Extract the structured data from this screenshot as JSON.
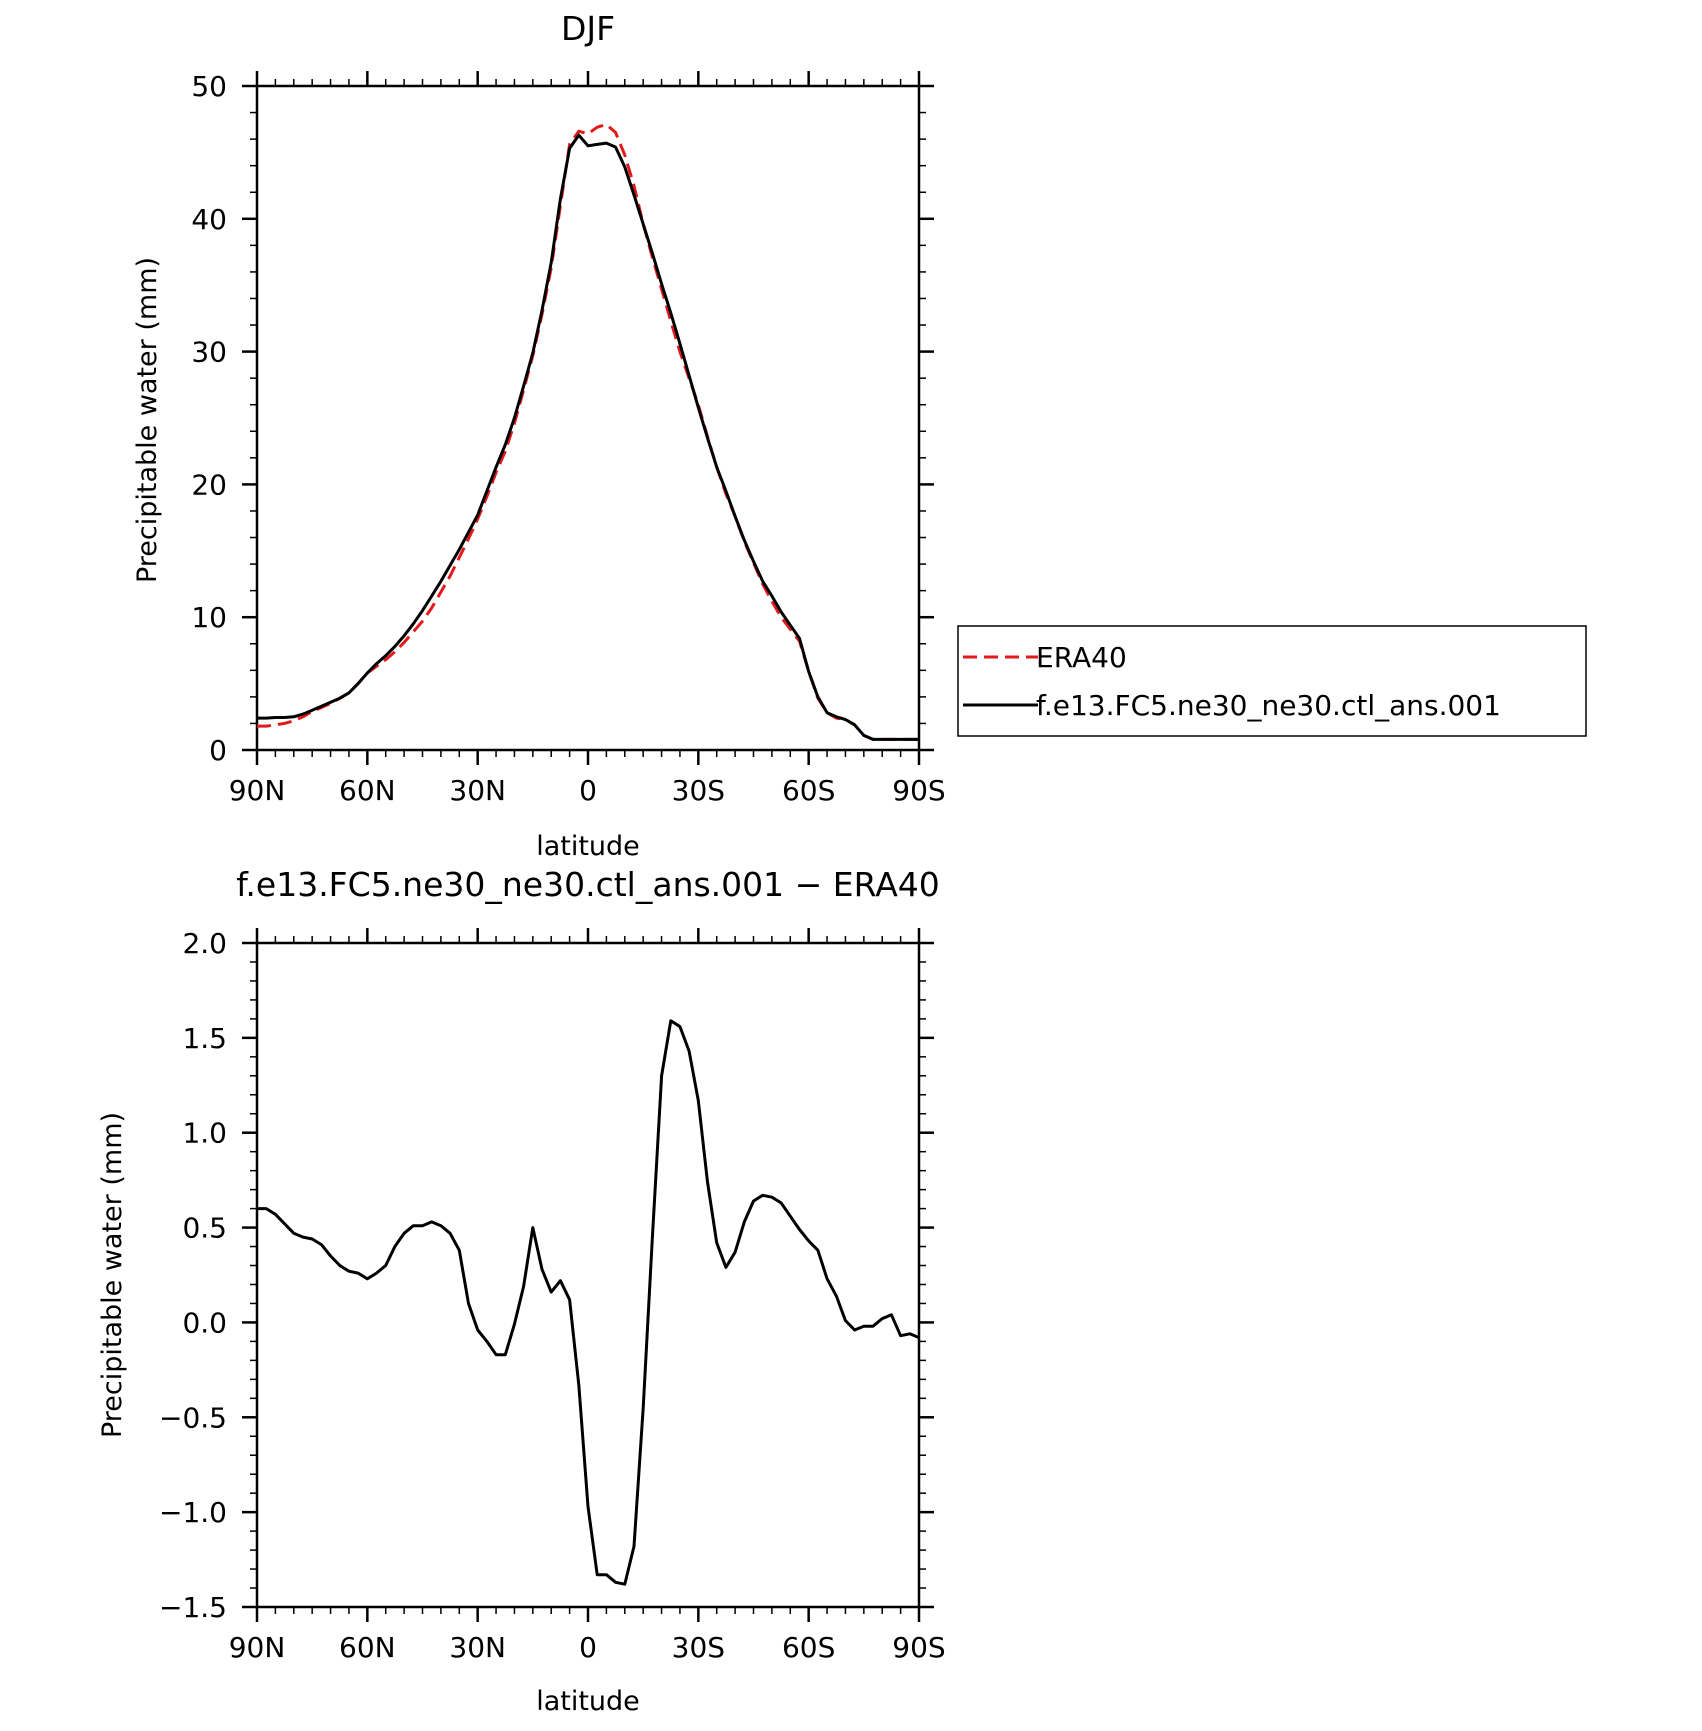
{
  "chart_data": [
    {
      "type": "line",
      "title": "DJF",
      "xlabel": "latitude",
      "ylabel": "Precipitable water (mm)",
      "xlim": [
        90,
        -90
      ],
      "ylim": [
        0,
        50
      ],
      "x_ticks": [
        90,
        60,
        30,
        0,
        -30,
        -60,
        -90
      ],
      "x_tick_labels": [
        "90N",
        "60N",
        "30N",
        "0",
        "30S",
        "60S",
        "90S"
      ],
      "y_ticks": [
        0,
        10,
        20,
        30,
        40,
        50
      ],
      "y_tick_labels": [
        "0",
        "10",
        "20",
        "30",
        "40",
        "50"
      ],
      "legend_position": "right",
      "series": [
        {
          "name": "ERA40",
          "color": "#e31a1c",
          "dash": "dashed",
          "x": [
            90,
            87.5,
            85,
            82.5,
            80,
            77.5,
            75,
            72.5,
            70,
            67.5,
            65,
            62.5,
            60,
            57.5,
            55,
            52.5,
            50,
            47.5,
            45,
            42.5,
            40,
            37.5,
            35,
            32.5,
            30,
            27.5,
            25,
            22.5,
            20,
            17.5,
            15,
            12.5,
            10,
            7.5,
            5,
            2.5,
            0,
            -2.5,
            -5,
            -7.5,
            -10,
            -12.5,
            -15,
            -17.5,
            -20,
            -22.5,
            -25,
            -27.5,
            -30,
            -32.5,
            -35,
            -37.5,
            -40,
            -42.5,
            -45,
            -47.5,
            -50,
            -52.5,
            -55,
            -57.5,
            -60,
            -62.5,
            -65,
            -67.5,
            -70,
            -72.5,
            -75,
            -77.5,
            -80,
            -82.5,
            -85,
            -87.5,
            -90
          ],
          "values": [
            1.8,
            1.8,
            1.9,
            2.0,
            2.2,
            2.5,
            2.9,
            3.2,
            3.5,
            3.9,
            4.3,
            5.0,
            5.8,
            6.3,
            6.8,
            7.4,
            8.1,
            8.9,
            9.7,
            10.7,
            11.9,
            13.1,
            14.5,
            15.9,
            17.4,
            19.1,
            20.9,
            22.5,
            24.6,
            27.1,
            29.7,
            32.8,
            36.3,
            41.0,
            45.6,
            46.6,
            46.4,
            46.9,
            47.1,
            46.5,
            44.8,
            42.5,
            39.6,
            37.1,
            34.7,
            32.3,
            30.0,
            28.0,
            26.0,
            23.6,
            21.3,
            19.3,
            17.6,
            15.7,
            14.1,
            12.5,
            11.2,
            10.0,
            9.1,
            8.2,
            5.9,
            3.9,
            2.8,
            2.4,
            2.3,
            1.9,
            1.1,
            0.8,
            0.8,
            0.8,
            0.8,
            0.8,
            0.8
          ]
        },
        {
          "name": "f.e13.FC5.ne30_ne30.ctl_ans.001",
          "color": "#000000",
          "dash": "solid",
          "x": [
            90,
            87.5,
            85,
            82.5,
            80,
            77.5,
            75,
            72.5,
            70,
            67.5,
            65,
            62.5,
            60,
            57.5,
            55,
            52.5,
            50,
            47.5,
            45,
            42.5,
            40,
            37.5,
            35,
            32.5,
            30,
            27.5,
            25,
            22.5,
            20,
            17.5,
            15,
            12.5,
            10,
            7.5,
            5,
            2.5,
            0,
            -2.5,
            -5,
            -7.5,
            -10,
            -12.5,
            -15,
            -17.5,
            -20,
            -22.5,
            -25,
            -27.5,
            -30,
            -32.5,
            -35,
            -37.5,
            -40,
            -42.5,
            -45,
            -47.5,
            -50,
            -52.5,
            -55,
            -57.5,
            -60,
            -62.5,
            -65,
            -67.5,
            -70,
            -72.5,
            -75,
            -77.5,
            -80,
            -82.5,
            -85,
            -87.5,
            -90
          ],
          "values": [
            2.4,
            2.4,
            2.45,
            2.45,
            2.5,
            2.7,
            3.0,
            3.3,
            3.6,
            3.9,
            4.3,
            5.0,
            5.8,
            6.5,
            7.1,
            7.8,
            8.6,
            9.5,
            10.5,
            11.6,
            12.7,
            13.9,
            15.1,
            16.4,
            17.7,
            19.5,
            21.3,
            23.0,
            25.0,
            27.4,
            29.9,
            33.1,
            36.7,
            41.5,
            45.3,
            46.3,
            45.5,
            45.6,
            45.7,
            45.4,
            43.9,
            41.8,
            39.6,
            37.4,
            35.1,
            32.9,
            30.6,
            28.2,
            25.8,
            23.5,
            21.3,
            19.5,
            17.6,
            15.8,
            14.2,
            12.7,
            11.6,
            10.4,
            9.4,
            8.4,
            5.9,
            4.0,
            2.8,
            2.5,
            2.3,
            1.9,
            1.1,
            0.8,
            0.8,
            0.8,
            0.8,
            0.8,
            0.8
          ]
        }
      ]
    },
    {
      "type": "line",
      "title": "f.e13.FC5.ne30_ne30.ctl_ans.001 − ERA40",
      "xlabel": "latitude",
      "ylabel": "Precipitable water (mm)",
      "xlim": [
        90,
        -90
      ],
      "ylim": [
        -1.5,
        2.0
      ],
      "x_ticks": [
        90,
        60,
        30,
        0,
        -30,
        -60,
        -90
      ],
      "x_tick_labels": [
        "90N",
        "60N",
        "30N",
        "0",
        "30S",
        "60S",
        "90S"
      ],
      "y_ticks": [
        -1.5,
        -1.0,
        -0.5,
        0.0,
        0.5,
        1.0,
        1.5,
        2.0
      ],
      "y_tick_labels": [
        "−1.5",
        "−1.0",
        "−0.5",
        "0.0",
        "0.5",
        "1.0",
        "1.5",
        "2.0"
      ],
      "series": [
        {
          "color": "#000000",
          "dash": "solid",
          "x": [
            90,
            87.5,
            85,
            82.5,
            80,
            77.5,
            75,
            72.5,
            70,
            67.5,
            65,
            62.5,
            60,
            57.5,
            55,
            52.5,
            50,
            47.5,
            45,
            42.5,
            40,
            37.5,
            35,
            32.5,
            30,
            27.5,
            25,
            22.5,
            20,
            17.5,
            15,
            12.5,
            10,
            7.5,
            5,
            2.5,
            0,
            -2.5,
            -5,
            -7.5,
            -10,
            -12.5,
            -15,
            -17.5,
            -20,
            -22.5,
            -25,
            -27.5,
            -30,
            -32.5,
            -35,
            -37.5,
            -40,
            -42.5,
            -45,
            -47.5,
            -50,
            -52.5,
            -55,
            -57.5,
            -60,
            -62.5,
            -65,
            -67.5,
            -70,
            -72.5,
            -75,
            -77.5,
            -80,
            -82.5,
            -85,
            -87.5,
            -90
          ],
          "values": [
            0.6,
            0.6,
            0.57,
            0.52,
            0.47,
            0.45,
            0.44,
            0.41,
            0.35,
            0.3,
            0.27,
            0.26,
            0.23,
            0.26,
            0.3,
            0.4,
            0.47,
            0.51,
            0.51,
            0.53,
            0.51,
            0.47,
            0.38,
            0.1,
            -0.04,
            -0.1,
            -0.17,
            -0.17,
            -0.01,
            0.19,
            0.5,
            0.28,
            0.16,
            0.22,
            0.12,
            -0.33,
            -0.97,
            -1.33,
            -1.33,
            -1.37,
            -1.38,
            -1.18,
            -0.45,
            0.45,
            1.3,
            1.59,
            1.56,
            1.43,
            1.17,
            0.74,
            0.42,
            0.29,
            0.37,
            0.53,
            0.64,
            0.67,
            0.66,
            0.63,
            0.56,
            0.49,
            0.43,
            0.38,
            0.23,
            0.14,
            0.01,
            -0.04,
            -0.02,
            -0.02,
            0.02,
            0.04,
            -0.07,
            -0.06,
            -0.08
          ]
        }
      ]
    }
  ]
}
